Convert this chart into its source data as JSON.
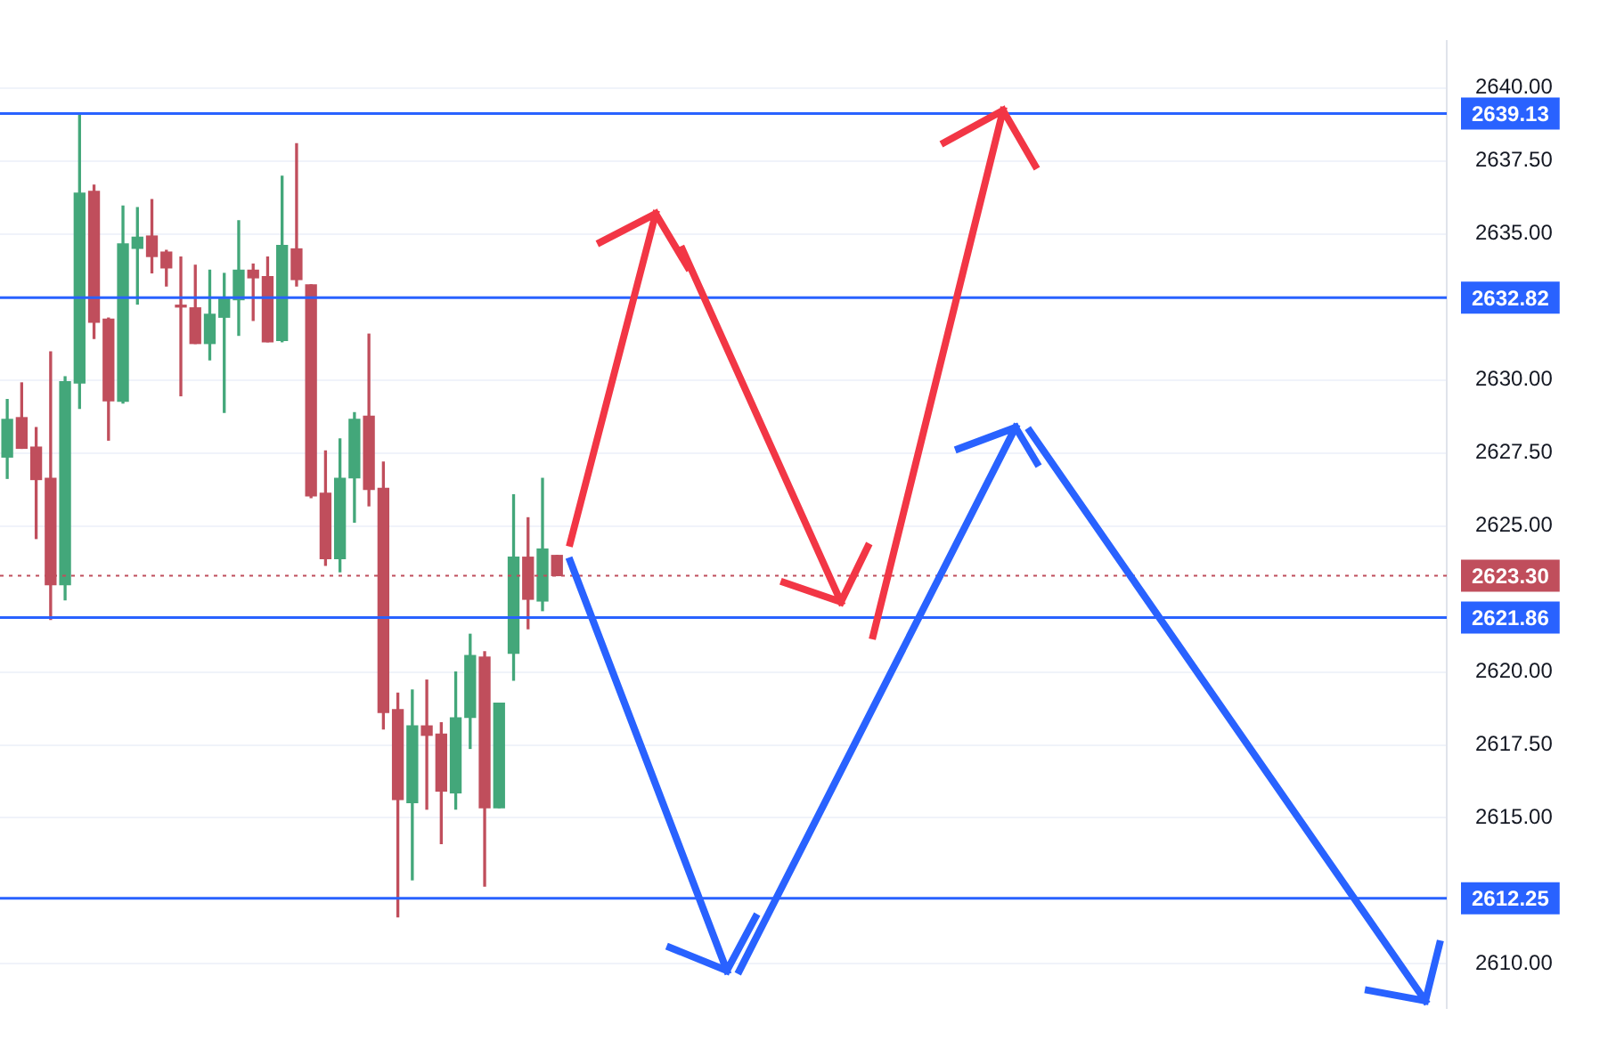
{
  "chart_data": {
    "type": "candlestick",
    "categories": [
      null,
      null,
      null,
      null,
      null,
      null,
      null,
      null,
      null,
      null,
      null,
      null,
      null,
      null,
      null,
      null,
      null,
      null,
      null,
      null,
      null,
      null,
      null,
      null,
      null,
      null,
      null,
      null,
      null,
      null,
      null,
      null,
      null,
      null,
      null,
      null,
      null,
      null,
      null,
      null,
      null,
      null,
      null,
      null,
      null,
      null,
      null,
      null,
      null,
      null,
      null,
      null,
      null,
      null,
      null,
      null,
      null,
      null,
      null,
      null,
      null,
      null,
      null,
      null,
      null,
      null,
      null,
      null,
      null,
      null,
      null,
      null,
      null,
      null,
      null,
      null,
      null,
      null,
      null,
      null,
      null,
      null,
      null,
      null,
      null,
      null,
      null,
      null,
      null,
      null,
      null,
      null,
      null,
      null,
      null,
      null,
      null,
      null,
      null,
      null
    ],
    "ohlc": [
      [
        2627.36,
        2629.33,
        2626.63,
        2628.65
      ],
      [
        2628.71,
        2629.9,
        2627.66,
        2627.66
      ],
      [
        2627.7,
        2628.37,
        2624.57,
        2626.59
      ],
      [
        2626.63,
        2630.96,
        2621.8,
        2622.99
      ],
      [
        2622.99,
        2630.11,
        2622.47,
        2629.94
      ],
      [
        2629.9,
        2639.06,
        2629.03,
        2636.4
      ],
      [
        2636.46,
        2636.67,
        2631.42,
        2631.98
      ],
      [
        2632.08,
        2632.12,
        2627.94,
        2629.29
      ],
      [
        2629.27,
        2635.96,
        2629.21,
        2634.66
      ],
      [
        2634.51,
        2635.9,
        2632.6,
        2634.89
      ],
      [
        2634.93,
        2636.18,
        2633.67,
        2634.23
      ],
      [
        2634.38,
        2634.44,
        2633.22,
        2633.84
      ],
      [
        2632.53,
        2634.21,
        2629.46,
        2632.5
      ],
      [
        2632.47,
        2633.93,
        2631.25,
        2631.25
      ],
      [
        2631.25,
        2633.76,
        2630.69,
        2632.25
      ],
      [
        2632.15,
        2633.65,
        2628.89,
        2632.79
      ],
      [
        2632.75,
        2635.45,
        2631.53,
        2633.76
      ],
      [
        2633.76,
        2633.97,
        2632.04,
        2633.5
      ],
      [
        2633.54,
        2634.21,
        2631.31,
        2631.31
      ],
      [
        2631.35,
        2636.98,
        2631.31,
        2634.61
      ],
      [
        2634.49,
        2638.09,
        2633.22,
        2633.44
      ],
      [
        2633.26,
        2633.26,
        2625.97,
        2626.03
      ],
      [
        2626.12,
        2627.57,
        2623.65,
        2623.88
      ],
      [
        2623.88,
        2627.98,
        2623.43,
        2626.63
      ],
      [
        2626.65,
        2628.88,
        2625.13,
        2628.65
      ],
      [
        2628.76,
        2631.57,
        2625.69,
        2626.25
      ],
      [
        2626.29,
        2627.19,
        2618.05,
        2618.61
      ],
      [
        2618.71,
        2619.27,
        2611.61,
        2615.63
      ],
      [
        2615.52,
        2619.38,
        2612.88,
        2618.15
      ],
      [
        2618.15,
        2619.72,
        2615.3,
        2617.83
      ],
      [
        2617.87,
        2618.26,
        2614.12,
        2615.92
      ],
      [
        2615.86,
        2620.0,
        2615.3,
        2618.43
      ],
      [
        2618.44,
        2621.29,
        2617.38,
        2620.56
      ],
      [
        2620.51,
        2620.69,
        2612.66,
        2615.35
      ],
      [
        2615.35,
        2618.93,
        2615.35,
        2618.93
      ],
      [
        2620.64,
        2626.07,
        2619.72,
        2623.93
      ],
      [
        2623.93,
        2625.28,
        2621.48,
        2622.49
      ],
      [
        2622.43,
        2626.63,
        2622.1,
        2624.21
      ],
      [
        2623.99,
        2623.99,
        2623.3,
        2623.3
      ],
      null,
      null,
      null,
      null,
      null,
      null,
      null,
      null,
      null,
      null,
      null,
      null,
      null,
      null,
      null,
      null,
      null,
      null,
      null,
      null,
      null,
      null,
      null,
      null,
      null,
      null,
      null,
      null,
      null,
      null,
      null,
      null,
      null,
      null,
      null,
      null,
      null,
      null,
      null,
      null,
      null,
      null,
      null,
      null,
      null,
      null,
      null,
      null,
      null,
      null,
      null,
      null,
      null,
      null,
      null,
      null,
      null,
      null,
      null,
      null,
      null
    ],
    "colors": [
      "#43a77a",
      "#c04e5c",
      "#c04e5c",
      "#c04e5c",
      "#43a77a",
      "#43a77a",
      "#c04e5c",
      "#c04e5c",
      "#43a77a",
      "#43a77a",
      "#c04e5c",
      "#c04e5c",
      "#c04e5c",
      "#c04e5c",
      "#43a77a",
      "#43a77a",
      "#43a77a",
      "#c04e5c",
      "#c04e5c",
      "#43a77a",
      "#c04e5c",
      "#c04e5c",
      "#c04e5c",
      "#43a77a",
      "#43a77a",
      "#c04e5c",
      "#c04e5c",
      "#c04e5c",
      "#43a77a",
      "#c04e5c",
      "#c04e5c",
      "#43a77a",
      "#43a77a",
      "#c04e5c",
      "#43a77a",
      "#43a77a",
      "#c04e5c",
      "#43a77a",
      "#c04e5c",
      null,
      null,
      null,
      null,
      null,
      null,
      null,
      null,
      null,
      null,
      null,
      null,
      null,
      null,
      null,
      null,
      null,
      null,
      null,
      null,
      null,
      null,
      null,
      null,
      null,
      null,
      null,
      null,
      null,
      null,
      null,
      null,
      null,
      null,
      null,
      null,
      null,
      null,
      null,
      null,
      null,
      null,
      null,
      null,
      null,
      null,
      null,
      null,
      null,
      null,
      null,
      null,
      null,
      null,
      null,
      null,
      null,
      null,
      null,
      null,
      null
    ],
    "ylim": [
      2608.5,
      2641.6
    ],
    "yticks": [
      {
        "value": 2610,
        "label": "2610.00"
      },
      {
        "value": 2615,
        "label": "2615.00"
      },
      {
        "value": 2617.5,
        "label": "2617.50"
      },
      {
        "value": 2620,
        "label": "2620.00"
      },
      {
        "value": 2625,
        "label": "2625.00"
      },
      {
        "value": 2627.5,
        "label": "2627.50"
      },
      {
        "value": 2630,
        "label": "2630.00"
      },
      {
        "value": 2635,
        "label": "2635.00"
      },
      {
        "value": 2637.5,
        "label": "2637.50"
      },
      {
        "value": 2640,
        "label": "2640.00"
      }
    ],
    "ref_lines": [
      {
        "axis": "y",
        "value": 2639.13,
        "label": "2639.13",
        "color": "#2962ff"
      },
      {
        "axis": "y",
        "value": 2632.82,
        "label": "2632.82",
        "color": "#2962ff"
      },
      {
        "axis": "y",
        "value": 2621.86,
        "label": "2621.86",
        "color": "#2962ff"
      },
      {
        "axis": "y",
        "value": 2612.25,
        "label": "2612.25",
        "color": "#2962ff"
      },
      {
        "axis": "y",
        "value": 2623.3,
        "label": "2623.30",
        "color": "#c04e5c",
        "line_style": "dotted"
      }
    ],
    "grid": "y",
    "tick_labels": "y"
  }
}
